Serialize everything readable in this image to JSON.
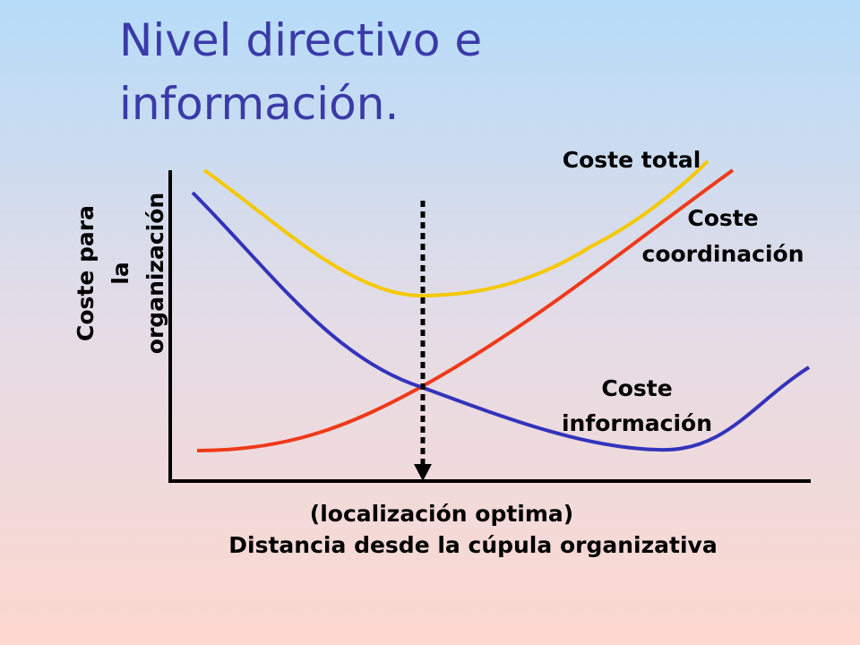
{
  "title_lines": [
    "Nivel directivo e",
    "información."
  ],
  "y_axis_label_lines": [
    "Coste para",
    "la",
    "organización"
  ],
  "x_axis_label": "Distancia desde la cúpula organizativa",
  "optimum_label": "(localización optima)",
  "curves": {
    "total": {
      "label_lines": [
        "Coste total"
      ]
    },
    "coordination": {
      "label_lines": [
        "Coste",
        "coordinación"
      ]
    },
    "information": {
      "label_lines": [
        "Coste",
        "información"
      ]
    }
  }
}
